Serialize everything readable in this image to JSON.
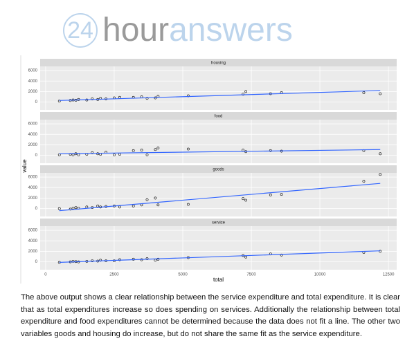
{
  "logo": {
    "number": "24",
    "word1": "hour",
    "word2": "answers"
  },
  "chart_data": [
    {
      "type": "scatter",
      "title": "housing",
      "ylabel": "value",
      "x": [
        500,
        900,
        1000,
        1100,
        1200,
        1500,
        1700,
        1900,
        2000,
        2200,
        2500,
        2700,
        3200,
        3500,
        3700,
        4000,
        4100,
        5200,
        7200,
        7300,
        8200,
        8600,
        11600,
        12200
      ],
      "values": [
        200,
        300,
        400,
        350,
        500,
        400,
        600,
        500,
        700,
        600,
        800,
        900,
        900,
        1000,
        700,
        800,
        1100,
        1200,
        1500,
        2000,
        1600,
        1800,
        1800,
        1600
      ],
      "fit": {
        "x": [
          500,
          12200
        ],
        "values": [
          300,
          2200
        ]
      },
      "xlim": [
        -200,
        12800
      ],
      "ylim": [
        -1500,
        6800
      ],
      "yticks": [
        0,
        2000,
        4000,
        6000
      ]
    },
    {
      "type": "scatter",
      "title": "food",
      "x": [
        500,
        900,
        1000,
        1100,
        1200,
        1500,
        1700,
        1900,
        2000,
        2200,
        2500,
        2700,
        3200,
        3500,
        3700,
        4000,
        4100,
        5200,
        7200,
        7300,
        8200,
        8600,
        11600,
        12200
      ],
      "values": [
        100,
        200,
        100,
        300,
        100,
        200,
        500,
        300,
        200,
        600,
        100,
        200,
        900,
        1000,
        100,
        1100,
        1400,
        1200,
        1000,
        700,
        900,
        800,
        900,
        300
      ],
      "fit": {
        "x": [
          500,
          12200
        ],
        "values": [
          300,
          1100
        ]
      },
      "xlim": [
        -200,
        12800
      ],
      "ylim": [
        -1500,
        6800
      ],
      "yticks": [
        0,
        2000,
        4000,
        6000
      ]
    },
    {
      "type": "scatter",
      "title": "goods",
      "x": [
        500,
        900,
        1000,
        1100,
        1200,
        1500,
        1700,
        1900,
        2000,
        2200,
        2500,
        2700,
        3200,
        3500,
        3700,
        4000,
        4100,
        5200,
        7200,
        7300,
        8200,
        8600,
        11600,
        12200
      ],
      "values": [
        0,
        -100,
        100,
        200,
        100,
        300,
        200,
        500,
        300,
        400,
        500,
        300,
        500,
        700,
        1700,
        2000,
        700,
        800,
        1900,
        1600,
        2600,
        2700,
        5200,
        6500
      ],
      "fit": {
        "x": [
          500,
          12200
        ],
        "values": [
          -400,
          4800
        ]
      },
      "xlim": [
        -200,
        12800
      ],
      "ylim": [
        -1500,
        6800
      ],
      "yticks": [
        0,
        2000,
        4000,
        6000
      ]
    },
    {
      "type": "scatter",
      "title": "service",
      "xlabel": "total",
      "x": [
        500,
        900,
        1000,
        1100,
        1200,
        1500,
        1700,
        1900,
        2000,
        2200,
        2500,
        2700,
        3200,
        3500,
        3700,
        4000,
        4100,
        5200,
        7200,
        7300,
        8200,
        8600,
        11600,
        12200
      ],
      "values": [
        -100,
        0,
        100,
        50,
        0,
        100,
        200,
        150,
        300,
        200,
        200,
        400,
        500,
        400,
        600,
        300,
        500,
        800,
        1200,
        900,
        1500,
        1300,
        1800,
        2000
      ],
      "fit": {
        "x": [
          500,
          12200
        ],
        "values": [
          -100,
          2100
        ]
      },
      "xlim": [
        -200,
        12800
      ],
      "ylim": [
        -1500,
        6800
      ],
      "yticks": [
        0,
        2000,
        4000,
        6000
      ],
      "xticks": [
        0,
        2500,
        5000,
        7500,
        10000,
        12500
      ]
    }
  ],
  "paragraph": "The above output shows a clear relationship between the service expenditure and total expenditure. It is clear that as total expenditures increase so does spending on services. Additionally the relationship between total expenditure and food expenditures cannot be determined because the data does not fit a line. The other two variables goods and housing do increase, but do not share the same fit as the service expenditure."
}
